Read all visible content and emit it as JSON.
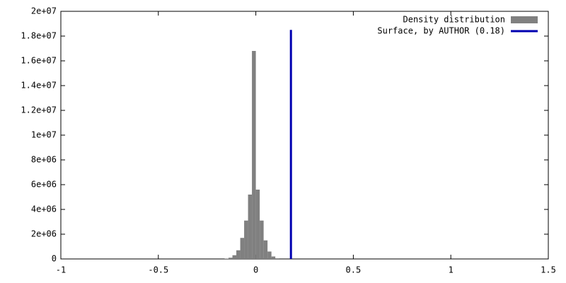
{
  "chart_data": {
    "type": "histogram",
    "series": [
      {
        "name": "Density distribution",
        "type": "histogram",
        "color": "#808080",
        "bins": [
          -0.16,
          -0.14,
          -0.12,
          -0.1,
          -0.08,
          -0.06,
          -0.04,
          -0.02,
          0,
          0.02,
          0.04,
          0.06,
          0.08,
          0.1,
          0.12
        ],
        "values": [
          30000,
          100000,
          300000,
          700000,
          1700000,
          3100000,
          5200000,
          16800000,
          5600000,
          3100000,
          1500000,
          600000,
          200000,
          50000
        ]
      },
      {
        "name": "Surface, by AUTHOR (0.18)",
        "type": "line",
        "color": "#0000b0",
        "x": [
          0.18,
          0.18
        ],
        "values": [
          0,
          18500000
        ]
      }
    ],
    "xlim": [
      -1,
      1.5
    ],
    "xticks": [
      -1,
      -0.5,
      0,
      0.5,
      1,
      1.5
    ],
    "ylim": [
      0,
      20000000
    ],
    "yticks": [
      0,
      {
        "value": 2000000,
        "label": "2e+06"
      },
      {
        "value": 4000000,
        "label": "4e+06"
      },
      {
        "value": 6000000,
        "label": "6e+06"
      },
      {
        "value": 8000000,
        "label": "8e+06"
      },
      {
        "value": 10000000,
        "label": "1e+07"
      },
      {
        "value": 12000000,
        "label": "1.2e+07"
      },
      {
        "value": 14000000,
        "label": "1.4e+07"
      },
      {
        "value": 16000000,
        "label": "1.6e+07"
      },
      {
        "value": 18000000,
        "label": "1.8e+07"
      },
      {
        "value": 20000000,
        "label": "2e+07"
      }
    ],
    "legend": "top-right",
    "grid": false
  }
}
